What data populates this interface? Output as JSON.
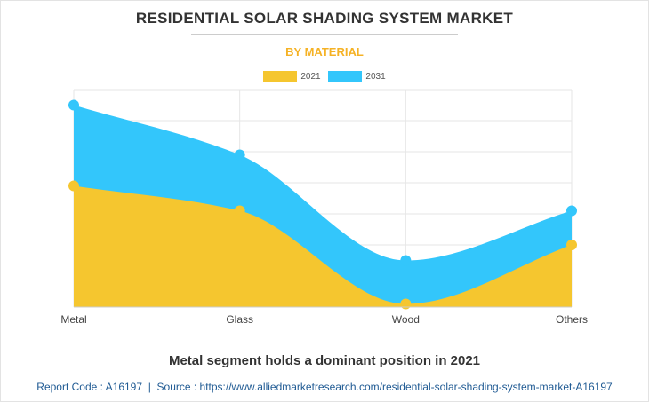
{
  "chart_data": {
    "type": "area",
    "title": "RESIDENTIAL SOLAR SHADING SYSTEM MARKET",
    "subtitle": "BY MATERIAL",
    "categories": [
      "Metal",
      "Glass",
      "Wood",
      "Others"
    ],
    "series": [
      {
        "name": "2021",
        "color": "#f5c62f",
        "values": [
          39,
          31,
          1,
          20
        ]
      },
      {
        "name": "2031",
        "color": "#33c6fb",
        "values": [
          65,
          49,
          15,
          31
        ]
      }
    ],
    "ylim": [
      0,
      70
    ],
    "grid": true,
    "legend": "top-center",
    "xlabel": "",
    "ylabel": ""
  },
  "caption": "Metal segment holds a dominant position in 2021",
  "footer": {
    "report_code_label": "Report Code : A16197",
    "separator": "|",
    "source_label": "Source : https://www.alliedmarketresearch.com/residential-solar-shading-system-market-A16197"
  }
}
